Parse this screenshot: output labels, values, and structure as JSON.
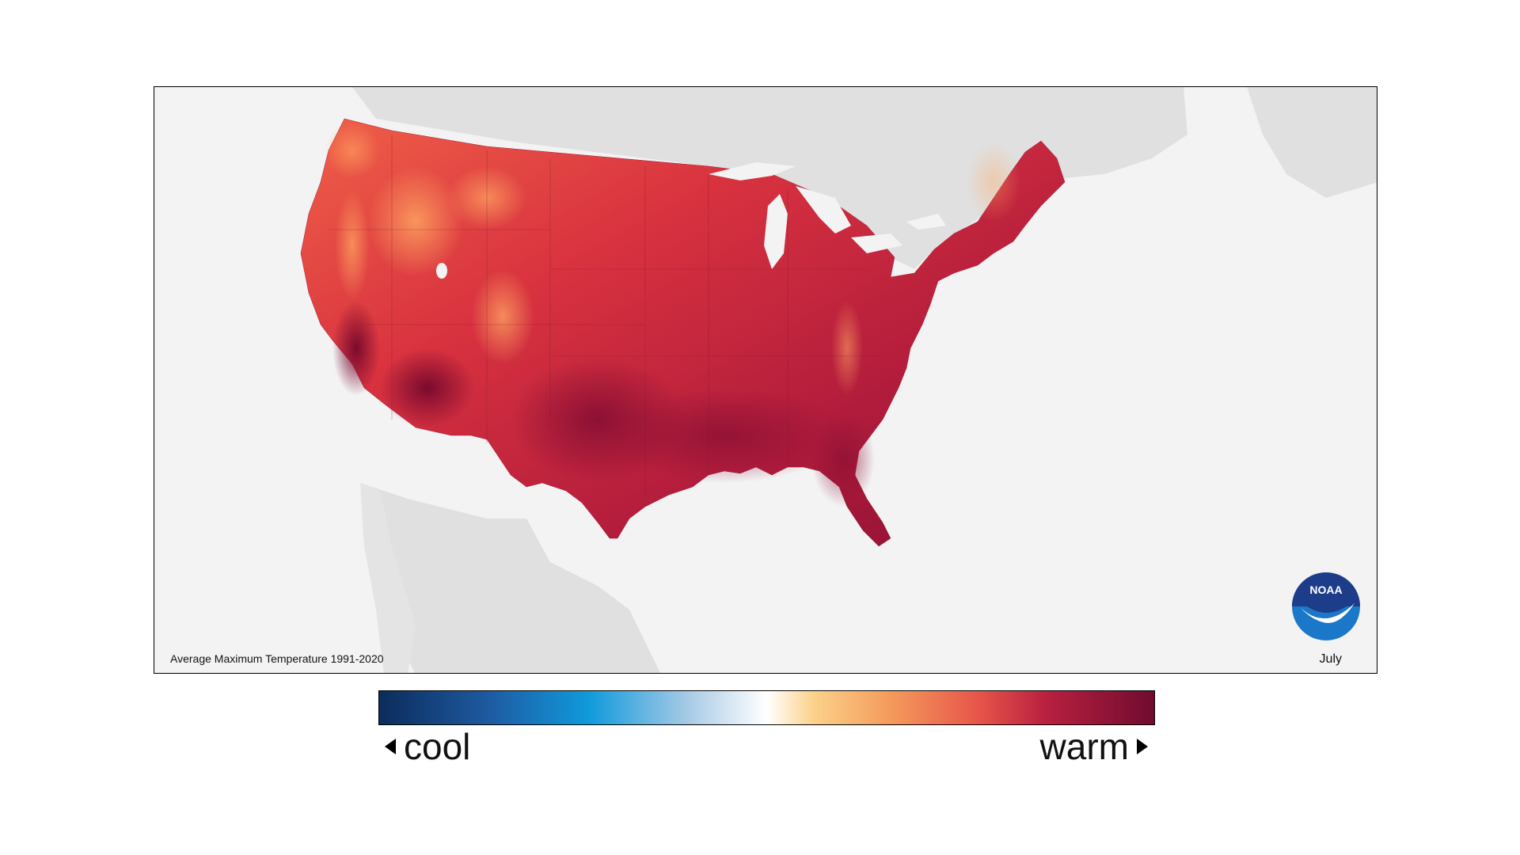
{
  "map": {
    "caption": "Average Maximum Temperature 1991-2020",
    "month": "July",
    "logo_text": "NOAA",
    "colors": {
      "ocean": "#f3f3f3",
      "neighbor_land": "#e0e0e0",
      "hot": "#8a0f32",
      "warm": "#d2283c",
      "mild": "#e8524a",
      "cool_highland": "#f8a060"
    }
  },
  "legend": {
    "cool_label": "cool",
    "warm_label": "warm",
    "gradient_stops": [
      "#0b2c5c",
      "#1e5aa0",
      "#0f9adb",
      "#a9cbe6",
      "#ffffff",
      "#fbd28a",
      "#f49a5b",
      "#e8574a",
      "#b9203f",
      "#6f0b2f"
    ]
  },
  "logo": {
    "colors": {
      "top": "#1d3d8a",
      "bottom": "#1b78c8",
      "bird": "#ffffff"
    }
  }
}
